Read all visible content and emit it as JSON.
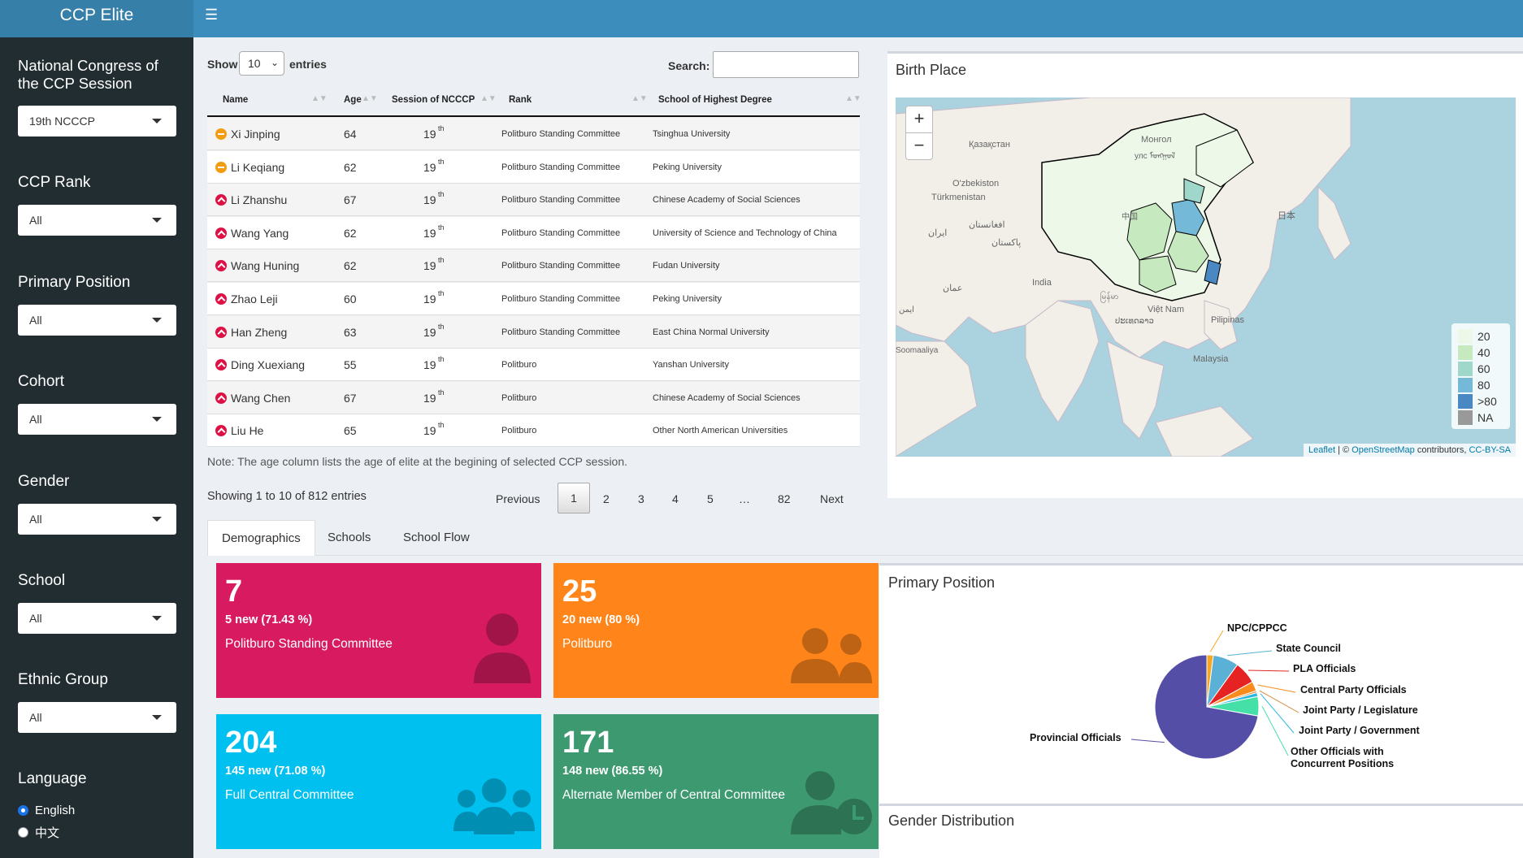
{
  "app": {
    "title": "CCP Elite"
  },
  "sidebar": {
    "session_label": "National Congress of the CCP Session",
    "session_value": "19th NCCCP",
    "rank_label": "CCP Rank",
    "rank_value": "All",
    "position_label": "Primary Position",
    "position_value": "All",
    "cohort_label": "Cohort",
    "cohort_value": "All",
    "gender_label": "Gender",
    "gender_value": "All",
    "school_label": "School",
    "school_value": "All",
    "ethnic_label": "Ethnic Group",
    "ethnic_value": "All",
    "language_label": "Language",
    "language_options": [
      "English",
      "中文"
    ],
    "language_selected": "English"
  },
  "table": {
    "show_label": "Show",
    "entries_label": "entries",
    "page_length": "10",
    "search_label": "Search:",
    "search_value": "",
    "columns": [
      "Name",
      "Age",
      "Session of NCCCP",
      "Rank",
      "School of Highest Degree"
    ],
    "rows": [
      {
        "icon": "minus",
        "name": "Xi Jinping",
        "age": "64",
        "session": "19",
        "suffix": "th",
        "rank": "Politburo Standing Committee",
        "school": "Tsinghua University"
      },
      {
        "icon": "minus",
        "name": "Li Keqiang",
        "age": "62",
        "session": "19",
        "suffix": "th",
        "rank": "Politburo Standing Committee",
        "school": "Peking University"
      },
      {
        "icon": "up",
        "name": "Li Zhanshu",
        "age": "67",
        "session": "19",
        "suffix": "th",
        "rank": "Politburo Standing Committee",
        "school": "Chinese Academy of Social Sciences"
      },
      {
        "icon": "up",
        "name": "Wang Yang",
        "age": "62",
        "session": "19",
        "suffix": "th",
        "rank": "Politburo Standing Committee",
        "school": "University of Science and Technology of China"
      },
      {
        "icon": "up",
        "name": "Wang Huning",
        "age": "62",
        "session": "19",
        "suffix": "th",
        "rank": "Politburo Standing Committee",
        "school": "Fudan University"
      },
      {
        "icon": "up",
        "name": "Zhao Leji",
        "age": "60",
        "session": "19",
        "suffix": "th",
        "rank": "Politburo Standing Committee",
        "school": "Peking University"
      },
      {
        "icon": "up",
        "name": "Han Zheng",
        "age": "63",
        "session": "19",
        "suffix": "th",
        "rank": "Politburo Standing Committee",
        "school": "East China Normal University"
      },
      {
        "icon": "up",
        "name": "Ding Xuexiang",
        "age": "55",
        "session": "19",
        "suffix": "th",
        "rank": "Politburo",
        "school": "Yanshan University"
      },
      {
        "icon": "up",
        "name": "Wang Chen",
        "age": "67",
        "session": "19",
        "suffix": "th",
        "rank": "Politburo",
        "school": "Chinese Academy of Social Sciences"
      },
      {
        "icon": "up",
        "name": "Liu He",
        "age": "65",
        "session": "19",
        "suffix": "th",
        "rank": "Politburo",
        "school": "Other North American Universities"
      }
    ],
    "note": "Note: The age column lists the age of elite at the begining of selected CCP session.",
    "info": "Showing 1 to 10 of 812 entries",
    "pagination": {
      "previous": "Previous",
      "pages": [
        "1",
        "2",
        "3",
        "4",
        "5",
        "…",
        "82"
      ],
      "next": "Next",
      "current": "1"
    }
  },
  "birth_place": {
    "title": "Birth Place",
    "zoom_in": "+",
    "zoom_out": "−",
    "map_labels": [
      "Қазақстан",
      "Монгол",
      "улс ᠮᠣᠩᠭᠣᠯ",
      "O'zbekiston",
      "Türkmenistan",
      "افغانستان",
      "پاکستان",
      "ایران",
      "India",
      "中国",
      "日本",
      "عمان",
      "Việt Nam",
      "Pilipinas",
      "Malaysia",
      "Soomaaliya",
      "မြန်မာ",
      "ປະເທດລາວ",
      "ایمن"
    ],
    "legend": [
      {
        "label": "20",
        "color": "#edf8e9"
      },
      {
        "label": "40",
        "color": "#c7e9c0"
      },
      {
        "label": "60",
        "color": "#9fd8cb"
      },
      {
        "label": "80",
        "color": "#74b9d8"
      },
      {
        "label": ">80",
        "color": "#4a88c4"
      },
      {
        "label": "NA",
        "color": "#999999"
      }
    ],
    "attribution": {
      "leaflet": "Leaflet",
      "sep": " | © ",
      "osm": "OpenStreetMap",
      "contrib": " contributors, ",
      "license": "CC-BY-SA"
    }
  },
  "tabs": [
    "Demographics",
    "Schools",
    "School Flow"
  ],
  "active_tab": "Demographics",
  "value_boxes": [
    {
      "number": "7",
      "subtitle": "5 new (71.43 %)",
      "label": "Politburo Standing Committee",
      "color": "#d81b60",
      "icon": "user-tie-icon"
    },
    {
      "number": "25",
      "subtitle": "20 new (80 %)",
      "label": "Politburo",
      "color": "#ff851b",
      "icon": "user-friends-icon"
    },
    {
      "number": "204",
      "subtitle": "145 new (71.08 %)",
      "label": "Full Central Committee",
      "color": "#00c0ef",
      "icon": "users-icon"
    },
    {
      "number": "171",
      "subtitle": "148 new (86.55 %)",
      "label": "Alternate Member of Central Committee",
      "color": "#3d9970",
      "icon": "user-clock-icon"
    }
  ],
  "primary_position": {
    "title": "Primary Position",
    "chart_data": {
      "type": "pie",
      "labels": [
        "NPC/CPPCC",
        "State Council",
        "PLA Officials",
        "Central Party Officials",
        "Joint Party / Legislature",
        "Joint Party / Government",
        "Other Officials with Concurrent Positions",
        "Provincial Officials"
      ],
      "values": [
        2,
        8,
        7,
        3,
        0.6,
        1.2,
        6,
        72.2
      ],
      "colors": [
        "#f5a623",
        "#5bb0d6",
        "#e62323",
        "#f98c1c",
        "#d98a3a",
        "#2ab7e2",
        "#45e0a8",
        "#554ea6"
      ]
    }
  },
  "gender_distribution": {
    "title": "Gender Distribution"
  }
}
